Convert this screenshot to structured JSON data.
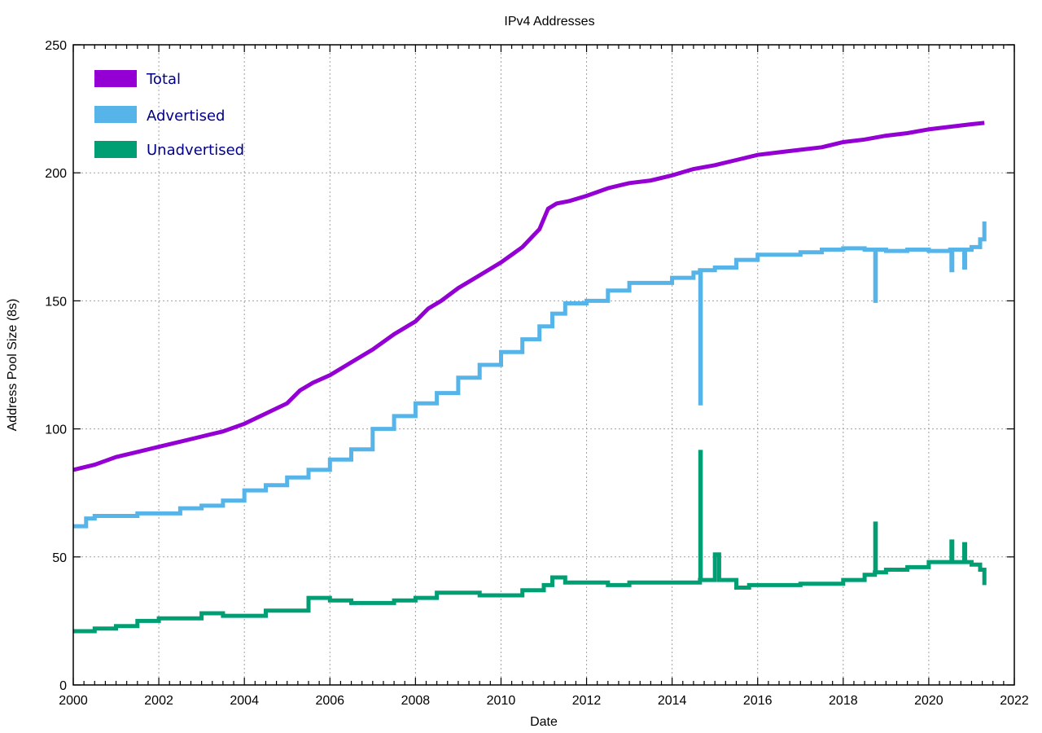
{
  "chart_data": {
    "type": "line",
    "title": "IPv4 Addresses",
    "xlabel": "Date",
    "ylabel": "Address Pool Size (8s)",
    "xlim": [
      2000,
      2022
    ],
    "ylim": [
      0,
      250
    ],
    "x_ticks": [
      "2000",
      "2002",
      "2004",
      "2006",
      "2008",
      "2010",
      "2012",
      "2014",
      "2016",
      "2018",
      "2020",
      "2022"
    ],
    "y_ticks": [
      "0",
      "50",
      "100",
      "150",
      "200",
      "250"
    ],
    "grid": true,
    "legend_position": "upper-left",
    "series": [
      {
        "name": "Total",
        "color": "#9400d3",
        "x": [
          2000.0,
          2000.5,
          2001.0,
          2001.5,
          2002.0,
          2002.5,
          2003.0,
          2003.5,
          2004.0,
          2004.5,
          2005.0,
          2005.3,
          2005.6,
          2006.0,
          2006.5,
          2007.0,
          2007.5,
          2008.0,
          2008.3,
          2008.6,
          2009.0,
          2009.5,
          2010.0,
          2010.5,
          2010.9,
          2011.1,
          2011.3,
          2011.6,
          2012.0,
          2012.5,
          2013.0,
          2013.5,
          2014.0,
          2014.5,
          2015.0,
          2015.5,
          2016.0,
          2016.5,
          2017.0,
          2017.5,
          2018.0,
          2018.5,
          2019.0,
          2019.5,
          2020.0,
          2020.5,
          2021.0,
          2021.3
        ],
        "values": [
          84,
          86,
          89,
          91,
          93,
          95,
          97,
          99,
          102,
          106,
          110,
          115,
          118,
          121,
          126,
          131,
          137,
          142,
          147,
          150,
          155,
          160,
          165,
          171,
          178,
          186,
          188,
          189,
          191,
          194,
          196,
          197,
          199,
          201.5,
          203,
          205,
          207,
          208,
          209,
          210,
          212,
          213,
          214.5,
          215.5,
          217,
          218,
          219,
          219.5
        ]
      },
      {
        "name": "Advertised",
        "color": "#56b4e9",
        "x": [
          2000.0,
          2000.3,
          2000.5,
          2001.0,
          2001.5,
          2002.0,
          2002.5,
          2003.0,
          2003.5,
          2004.0,
          2004.5,
          2005.0,
          2005.5,
          2006.0,
          2006.5,
          2007.0,
          2007.5,
          2008.0,
          2008.5,
          2009.0,
          2009.5,
          2010.0,
          2010.5,
          2010.9,
          2011.2,
          2011.5,
          2012.0,
          2012.5,
          2013.0,
          2013.5,
          2014.0,
          2014.5,
          2014.65,
          2014.66,
          2014.67,
          2014.68,
          2014.9,
          2015.0,
          2015.5,
          2016.0,
          2016.5,
          2017.0,
          2017.5,
          2018.0,
          2018.5,
          2018.74,
          2018.75,
          2018.76,
          2019.0,
          2019.5,
          2020.0,
          2020.5,
          2020.53,
          2020.55,
          2020.8,
          2020.83,
          2020.85,
          2021.0,
          2021.2,
          2021.3
        ],
        "values": [
          62,
          65,
          66,
          66,
          67,
          67,
          69,
          70,
          72,
          76,
          78,
          81,
          84,
          88,
          92,
          100,
          105,
          110,
          114,
          120,
          125,
          130,
          135,
          140,
          145,
          149,
          150,
          154,
          157,
          157,
          159,
          161,
          162,
          110,
          162,
          162,
          162,
          163,
          166,
          168,
          168,
          169,
          170,
          170.5,
          170,
          170,
          150,
          170,
          169.5,
          170,
          169.5,
          170,
          162,
          170,
          170,
          163,
          170,
          171,
          174,
          181
        ]
      },
      {
        "name": "Unadvertised",
        "color": "#009e73",
        "x": [
          2000.0,
          2000.5,
          2001.0,
          2001.5,
          2002.0,
          2002.5,
          2003.0,
          2003.5,
          2004.0,
          2004.5,
          2005.0,
          2005.5,
          2006.0,
          2006.5,
          2007.0,
          2007.5,
          2008.0,
          2008.5,
          2009.0,
          2009.5,
          2010.0,
          2010.5,
          2011.0,
          2011.2,
          2011.5,
          2012.0,
          2012.5,
          2013.0,
          2013.5,
          2014.0,
          2014.5,
          2014.65,
          2014.66,
          2014.67,
          2014.68,
          2014.9,
          2015.0,
          2015.1,
          2015.5,
          2015.8,
          2016.0,
          2016.5,
          2017.0,
          2017.5,
          2018.0,
          2018.5,
          2018.74,
          2018.75,
          2018.76,
          2019.0,
          2019.5,
          2020.0,
          2020.5,
          2020.53,
          2020.55,
          2020.8,
          2020.83,
          2020.85,
          2021.0,
          2021.2,
          2021.3
        ],
        "values": [
          21,
          22,
          23,
          25,
          26,
          26,
          28,
          27,
          27,
          29,
          29,
          34,
          33,
          32,
          32,
          33,
          34,
          36,
          36,
          35,
          35,
          37,
          39,
          42,
          40,
          40,
          39,
          40,
          40,
          40,
          40,
          41,
          91,
          41,
          41,
          41,
          51,
          41,
          38,
          39,
          39,
          39,
          39.5,
          39.5,
          41,
          43,
          44,
          63,
          44,
          45,
          46,
          48,
          48,
          56,
          48,
          48,
          55,
          48,
          47,
          45,
          39
        ]
      }
    ]
  },
  "legend": {
    "items": [
      {
        "label": "Total",
        "color": "#9400d3"
      },
      {
        "label": "Advertised",
        "color": "#56b4e9"
      },
      {
        "label": "Unadvertised",
        "color": "#009e73"
      }
    ]
  }
}
